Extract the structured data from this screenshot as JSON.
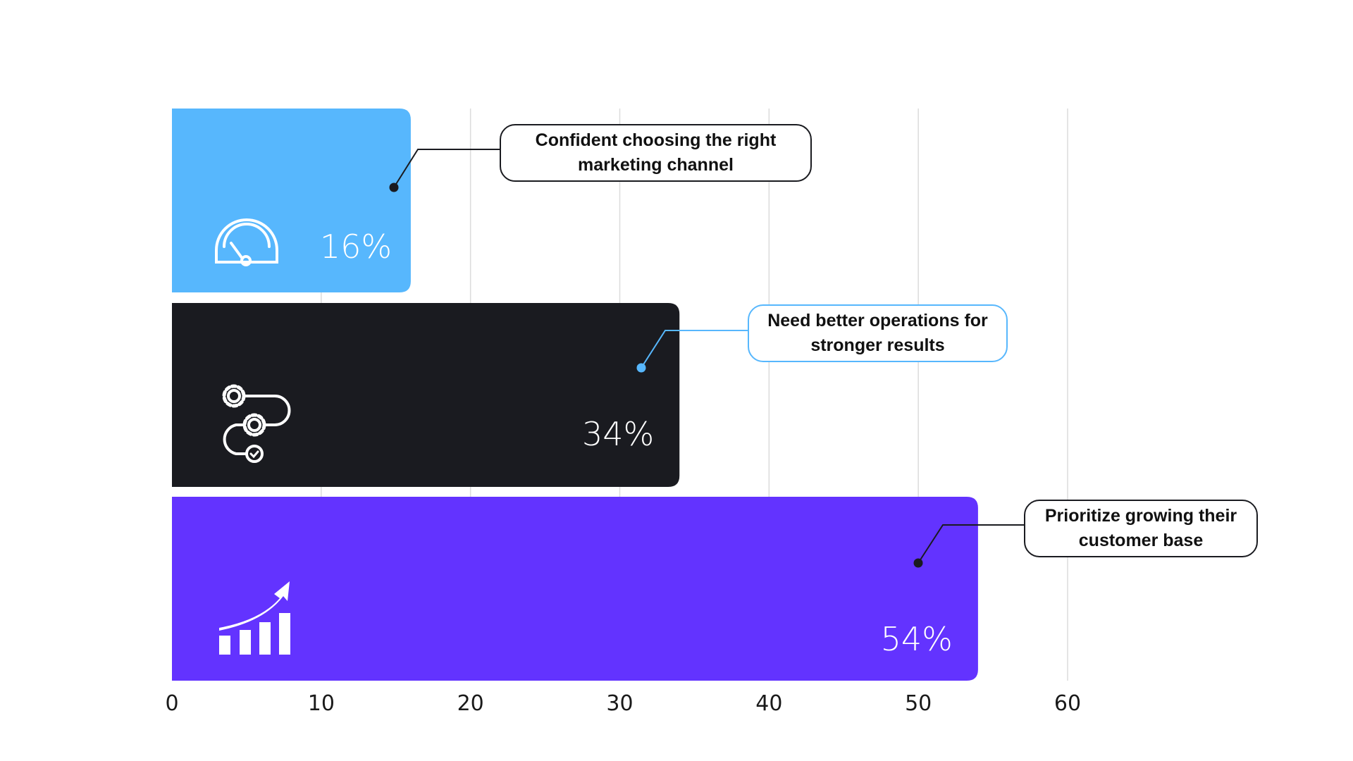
{
  "chart_data": {
    "type": "bar",
    "orientation": "horizontal",
    "categories": [
      "Confident choosing the right marketing channel",
      "Need better operations for stronger results",
      "Prioritize growing their customer base"
    ],
    "values": [
      16,
      34,
      54
    ],
    "value_labels": [
      "16%",
      "34%",
      "54%"
    ],
    "icons": [
      "speedometer-icon",
      "gears-process-icon",
      "growth-chart-icon"
    ],
    "colors": [
      "#57b7fd",
      "#1a1b20",
      "#6333ff"
    ],
    "callout_border_colors": [
      "#1a1b20",
      "#57b7fd",
      "#1a1b20"
    ],
    "xlim": [
      0,
      60
    ],
    "xticks": [
      "0",
      "10",
      "20",
      "30",
      "40",
      "50",
      "60"
    ],
    "grid": true,
    "title": "",
    "xlabel": "",
    "ylabel": ""
  }
}
